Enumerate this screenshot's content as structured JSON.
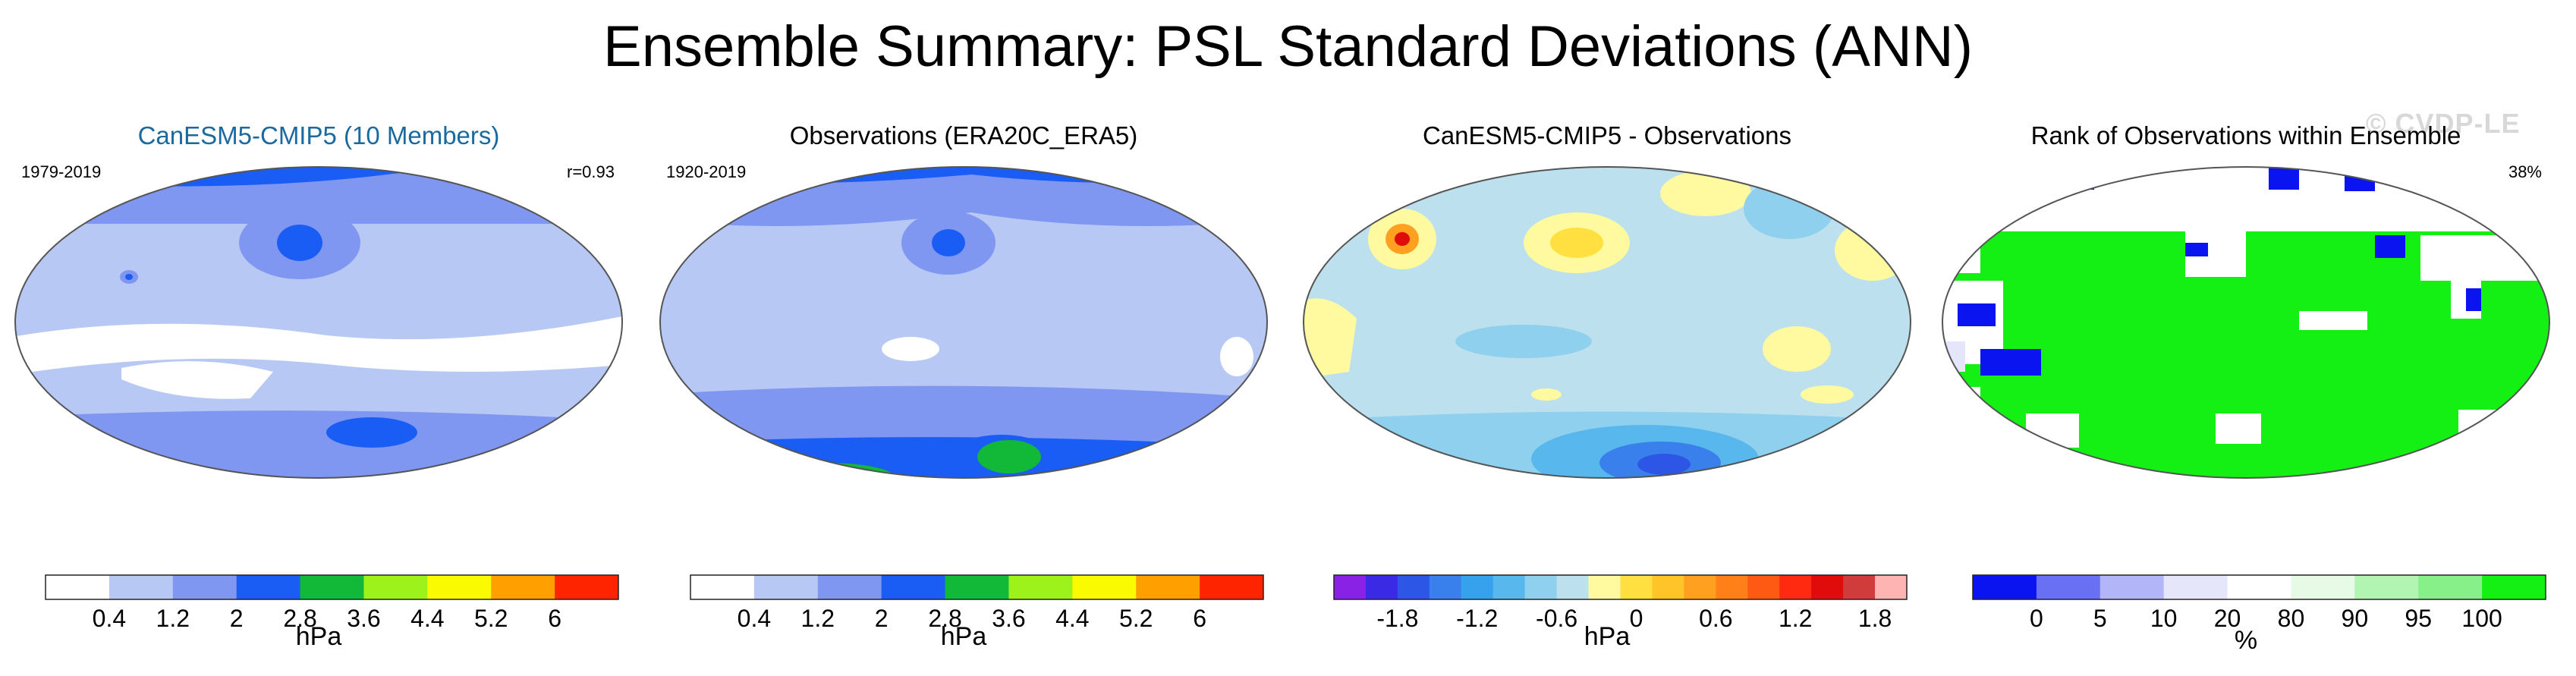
{
  "title": "Ensemble Summary: PSL Standard Deviations (ANN)",
  "watermark": "© CVDP-LE",
  "panels": [
    {
      "title": "CanESM5-CMIP5 (10 Members)",
      "title_color": "#1a6aa0",
      "period": "1979-2019",
      "stat": "r=0.93"
    },
    {
      "title": "Observations (ERA20C_ERA5)",
      "title_color": "#000000",
      "period": "1920-2019",
      "stat": ""
    },
    {
      "title": "CanESM5-CMIP5 - Observations",
      "title_color": "#000000",
      "period": "",
      "stat": ""
    },
    {
      "title": "Rank of Observations within Ensemble",
      "title_color": "#000000",
      "period": "",
      "stat": "38%"
    }
  ],
  "colorbars": {
    "sd": {
      "units": "hPa",
      "colors": [
        "#ffffff",
        "#b8c8f5",
        "#7f97f0",
        "#1a5df5",
        "#12b838",
        "#9cf21a",
        "#fafa00",
        "#ffa000",
        "#ff2400"
      ],
      "labels": [
        "0.4",
        "1.2",
        "2",
        "2.8",
        "3.6",
        "4.4",
        "5.2",
        "6"
      ]
    },
    "diff": {
      "units": "hPa",
      "colors": [
        "#8a22e6",
        "#3a2ae6",
        "#2e56e6",
        "#3a80ec",
        "#36a2ee",
        "#58b8ee",
        "#8fd0ee",
        "#bde0ee",
        "#fffaa0",
        "#ffe040",
        "#ffc428",
        "#ffa020",
        "#ff8018",
        "#ff5a14",
        "#ff2a10",
        "#e00c0c",
        "#d03c3c",
        "#ffb4b4"
      ],
      "labels": [
        "-1.8",
        "-1.2",
        "-0.6",
        "0",
        "0.6",
        "1.2",
        "1.8"
      ]
    },
    "rank": {
      "units": "%",
      "colors": [
        "#0a14f0",
        "#6a70f4",
        "#b2b6f8",
        "#e6e6fb",
        "#ffffff",
        "#e6fae6",
        "#b2f5b2",
        "#88f088",
        "#14f014"
      ],
      "labels": [
        "0",
        "5",
        "10",
        "20",
        "80",
        "90",
        "95",
        "100"
      ]
    }
  }
}
